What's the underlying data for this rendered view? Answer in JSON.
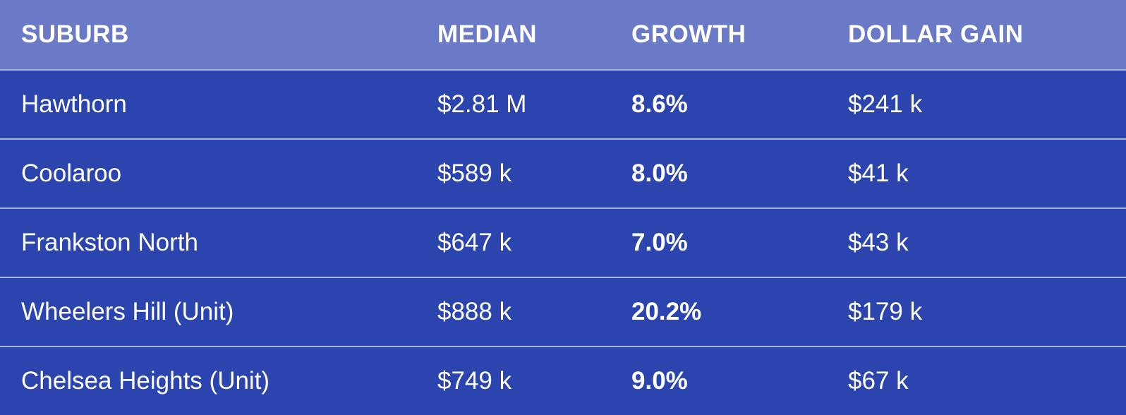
{
  "colors": {
    "header_bg": "#6b7ac6",
    "row_bg": "#2b44ae",
    "divider": "#a9b4e0",
    "text": "#ffffff"
  },
  "table": {
    "columns": [
      "SUBURB",
      "MEDIAN",
      "GROWTH",
      "DOLLAR GAIN"
    ],
    "rows": [
      {
        "suburb": "Hawthorn",
        "median": "$2.81 M",
        "growth": "8.6%",
        "dollar_gain": "$241 k"
      },
      {
        "suburb": "Coolaroo",
        "median": "$589 k",
        "growth": "8.0%",
        "dollar_gain": "$41 k"
      },
      {
        "suburb": "Frankston North",
        "median": "$647 k",
        "growth": "7.0%",
        "dollar_gain": "$43 k"
      },
      {
        "suburb": "Wheelers Hill (Unit)",
        "median": "$888 k",
        "growth": "20.2%",
        "dollar_gain": "$179 k"
      },
      {
        "suburb": "Chelsea Heights (Unit)",
        "median": "$749 k",
        "growth": "9.0%",
        "dollar_gain": "$67 k"
      }
    ]
  },
  "chart_data": {
    "type": "table",
    "title": "",
    "columns": [
      "SUBURB",
      "MEDIAN",
      "GROWTH",
      "DOLLAR GAIN"
    ],
    "rows": [
      [
        "Hawthorn",
        "$2.81 M",
        "8.6%",
        "$241 k"
      ],
      [
        "Coolaroo",
        "$589 k",
        "8.0%",
        "$41 k"
      ],
      [
        "Frankston North",
        "$647 k",
        "7.0%",
        "$43 k"
      ],
      [
        "Wheelers Hill (Unit)",
        "$888 k",
        "20.2%",
        "$179 k"
      ],
      [
        "Chelsea Heights (Unit)",
        "$749 k",
        "9.0%",
        "$67 k"
      ]
    ],
    "numeric": {
      "suburbs": [
        "Hawthorn",
        "Coolaroo",
        "Frankston North",
        "Wheelers Hill (Unit)",
        "Chelsea Heights (Unit)"
      ],
      "median_dollars": [
        2810000,
        589000,
        647000,
        888000,
        749000
      ],
      "growth_percent": [
        8.6,
        8.0,
        7.0,
        20.2,
        9.0
      ],
      "dollar_gain_dollars": [
        241000,
        41000,
        43000,
        179000,
        67000
      ]
    }
  }
}
